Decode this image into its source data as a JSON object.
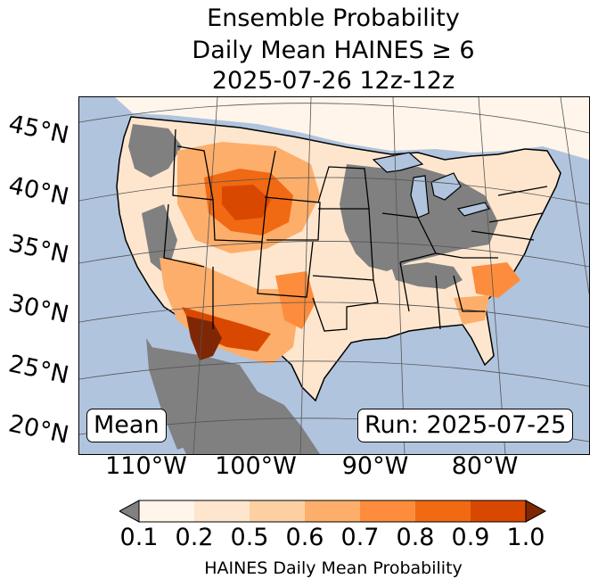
{
  "title": {
    "line1": "Ensemble Probability",
    "line2": "Daily Mean HAINES ≥ 6",
    "line3": "2025-07-26 12z-12z"
  },
  "map": {
    "lat_labels": [
      "45°N",
      "40°N",
      "35°N",
      "30°N",
      "25°N",
      "20°N"
    ],
    "lon_labels": [
      "110°W",
      "100°W",
      "90°W",
      "80°W"
    ],
    "stat_label": "Mean",
    "run_label": "Run: 2025-07-25",
    "colors": {
      "ocean": "#b0c4de",
      "land_below_threshold": "#808080",
      "bin_0.1_0.2": "#fff5eb",
      "bin_0.2_0.5": "#fee6ce",
      "bin_0.5_0.6": "#fdd0a2",
      "bin_0.6_0.7": "#fdae6b",
      "bin_0.7_0.8": "#fd8d3c",
      "bin_0.8_0.9": "#f16913",
      "bin_0.9_1.0": "#d94801",
      "over_1.0": "#7f2704"
    }
  },
  "colorbar": {
    "ticks": [
      "0.1",
      "0.2",
      "0.5",
      "0.6",
      "0.7",
      "0.8",
      "0.9",
      "1.0"
    ],
    "label": "HAINES Daily Mean Probability",
    "under_color": "#808080",
    "over_color": "#7f2704"
  }
}
